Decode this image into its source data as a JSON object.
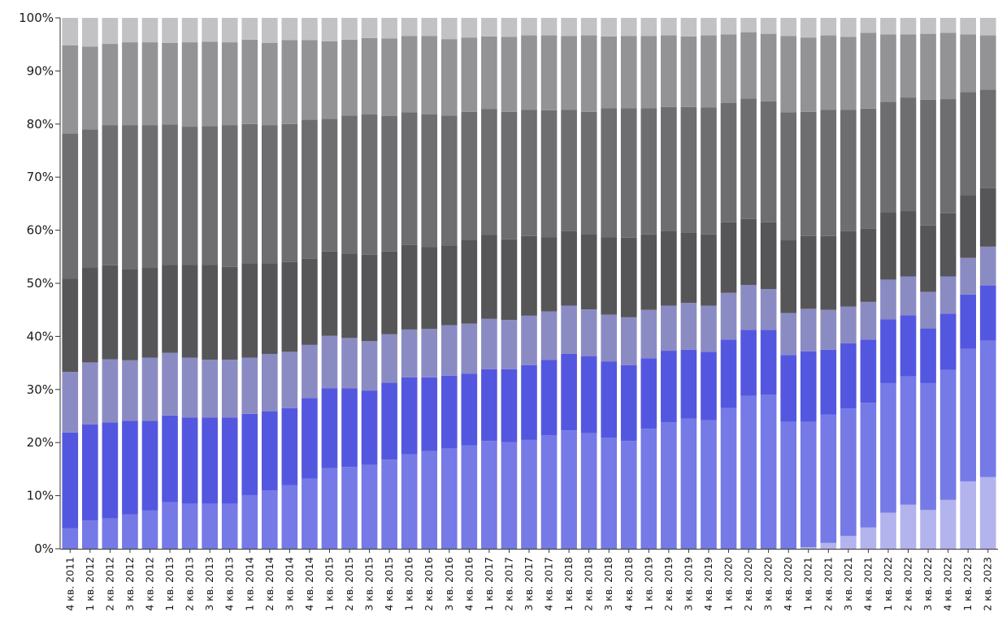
{
  "chart_data": {
    "type": "bar",
    "stacked": true,
    "normalized": true,
    "ylim": [
      0,
      100
    ],
    "y_ticks": [
      "0%",
      "10%",
      "20%",
      "30%",
      "40%",
      "50%",
      "60%",
      "70%",
      "80%",
      "90%",
      "100%"
    ],
    "y_tick_values": [
      0,
      10,
      20,
      30,
      40,
      50,
      60,
      70,
      80,
      90,
      100
    ],
    "grid": false,
    "legend": "none",
    "categories": [
      "4 кв. 2011",
      "1 кв. 2012",
      "2 кв. 2012",
      "3 кв. 2012",
      "4 кв. 2012",
      "1 кв. 2013",
      "2 кв. 2013",
      "3 кв. 2013",
      "4 кв. 2013",
      "1 кв. 2014",
      "2 кв. 2014",
      "3 кв. 2014",
      "4 кв. 2014",
      "1 кв. 2015",
      "2 кв. 2015",
      "3 кв. 2015",
      "4 кв. 2015",
      "1 кв. 2016",
      "2 кв. 2016",
      "3 кв. 2016",
      "4 кв. 2016",
      "1 кв. 2017",
      "2 кв. 2017",
      "3 кв. 2017",
      "4 кв. 2017",
      "1 кв. 2018",
      "2 кв. 2018",
      "3 кв. 2018",
      "4 кв. 2018",
      "1 кв. 2019",
      "2 кв. 2019",
      "3 кв. 2019",
      "4 кв. 2019",
      "1 кв. 2020",
      "2 кв. 2020",
      "3 кв. 2020",
      "4 кв. 2020",
      "1 кв. 2021",
      "2 кв. 2021",
      "3 кв. 2021",
      "4 кв. 2021",
      "1 кв. 2022",
      "2 кв. 2022",
      "3 кв. 2022",
      "4 кв. 2022",
      "1 кв. 2023",
      "2 кв. 2023"
    ],
    "series": [
      {
        "color": "#b3b3ee",
        "values": [
          0,
          0,
          0,
          0,
          0,
          0,
          0,
          0,
          0,
          0,
          0,
          0,
          0,
          0,
          0,
          0,
          0,
          0,
          0,
          0,
          0,
          0,
          0,
          0,
          0,
          0,
          0,
          0,
          0,
          0,
          0,
          0,
          0,
          0,
          0,
          0,
          0,
          0.3,
          1.1,
          2.4,
          4.0,
          6.8,
          8.3,
          7.3,
          9.2,
          12.7,
          13.5
        ]
      },
      {
        "color": "#757ae6",
        "values": [
          3.9,
          5.3,
          5.7,
          6.5,
          7.2,
          8.8,
          8.5,
          8.5,
          8.5,
          10.1,
          11.0,
          12.0,
          13.2,
          15.2,
          15.4,
          15.8,
          16.8,
          17.8,
          18.4,
          18.9,
          19.5,
          20.3,
          20.1,
          20.5,
          21.4,
          22.3,
          21.8,
          20.9,
          20.3,
          22.6,
          23.8,
          24.5,
          24.2,
          26.5,
          28.8,
          29.0,
          23.9,
          23.6,
          24.2,
          24.0,
          23.5,
          24.4,
          24.2,
          23.9,
          24.5,
          25.0,
          25.7
        ]
      },
      {
        "color": "#5357e0",
        "values": [
          18.0,
          18.1,
          18.1,
          17.6,
          16.9,
          16.3,
          16.2,
          16.2,
          16.2,
          15.3,
          14.9,
          14.5,
          15.2,
          15.0,
          14.8,
          14.0,
          14.5,
          14.5,
          13.9,
          13.7,
          13.5,
          13.5,
          13.7,
          14.1,
          14.2,
          14.4,
          14.5,
          14.4,
          14.3,
          13.3,
          13.5,
          13.0,
          12.9,
          12.9,
          12.4,
          12.2,
          12.6,
          13.3,
          12.2,
          12.3,
          11.9,
          12.0,
          11.5,
          10.3,
          10.6,
          10.2,
          10.4
        ]
      },
      {
        "color": "#8b8bc4",
        "values": [
          11.4,
          11.7,
          11.9,
          11.4,
          11.9,
          11.8,
          11.3,
          10.9,
          10.9,
          10.6,
          10.8,
          10.6,
          10.0,
          9.9,
          9.5,
          9.3,
          9.1,
          9.0,
          9.1,
          9.5,
          9.4,
          9.5,
          9.3,
          9.3,
          9.1,
          9.1,
          8.8,
          8.8,
          9.0,
          9.1,
          8.5,
          8.8,
          8.7,
          8.8,
          8.5,
          7.7,
          7.9,
          8.0,
          7.5,
          6.9,
          7.1,
          7.5,
          7.3,
          6.9,
          7.0,
          6.9,
          7.3
        ]
      },
      {
        "color": "#565658",
        "values": [
          17.6,
          17.9,
          17.7,
          17.2,
          16.9,
          16.6,
          17.5,
          17.9,
          17.5,
          17.8,
          17.1,
          16.9,
          16.2,
          15.9,
          15.9,
          16.3,
          15.6,
          15.9,
          15.4,
          15.0,
          15.8,
          15.8,
          15.2,
          15.0,
          14.0,
          14.0,
          14.2,
          14.6,
          15.0,
          14.2,
          14.1,
          13.3,
          13.4,
          13.3,
          12.4,
          12.6,
          13.7,
          13.7,
          13.9,
          14.2,
          13.8,
          12.7,
          12.3,
          12.5,
          11.9,
          11.8,
          11.0
        ]
      },
      {
        "color": "#6e6e70",
        "values": [
          27.3,
          26.0,
          26.4,
          27.1,
          26.9,
          26.4,
          26.0,
          26.1,
          26.7,
          26.2,
          26.0,
          26.0,
          26.2,
          25.0,
          26.0,
          26.4,
          25.5,
          25.0,
          25.0,
          24.5,
          24.1,
          23.7,
          24.0,
          23.8,
          23.9,
          22.9,
          23.0,
          24.3,
          24.4,
          23.8,
          23.3,
          23.6,
          23.9,
          22.5,
          22.7,
          22.8,
          24.1,
          23.4,
          23.8,
          22.9,
          22.6,
          20.8,
          21.4,
          23.7,
          21.5,
          19.4,
          18.6
        ]
      },
      {
        "color": "#939395",
        "values": [
          16.6,
          15.6,
          15.3,
          15.6,
          15.6,
          15.4,
          15.9,
          15.9,
          15.6,
          15.9,
          15.5,
          15.8,
          15.0,
          14.6,
          14.3,
          14.4,
          14.6,
          14.4,
          14.8,
          14.4,
          14.0,
          13.7,
          14.1,
          14.0,
          14.1,
          13.9,
          14.4,
          13.5,
          13.6,
          13.6,
          13.5,
          13.3,
          13.6,
          12.9,
          12.5,
          12.7,
          14.4,
          14.0,
          14.0,
          13.7,
          14.3,
          12.7,
          11.9,
          12.4,
          12.5,
          10.9,
          10.2
        ]
      },
      {
        "color": "#c2c2c4",
        "values": [
          5.2,
          5.4,
          4.9,
          4.6,
          4.6,
          4.7,
          4.6,
          4.5,
          4.6,
          4.1,
          4.7,
          4.2,
          4.2,
          4.4,
          4.1,
          3.8,
          3.9,
          3.4,
          3.4,
          4.0,
          3.7,
          3.5,
          3.6,
          3.3,
          3.3,
          3.4,
          3.3,
          3.5,
          3.4,
          3.4,
          3.3,
          3.5,
          3.3,
          3.1,
          2.7,
          3.0,
          3.4,
          3.7,
          3.3,
          3.6,
          2.8,
          3.1,
          3.1,
          3.0,
          2.8,
          3.1,
          3.3
        ]
      }
    ]
  }
}
